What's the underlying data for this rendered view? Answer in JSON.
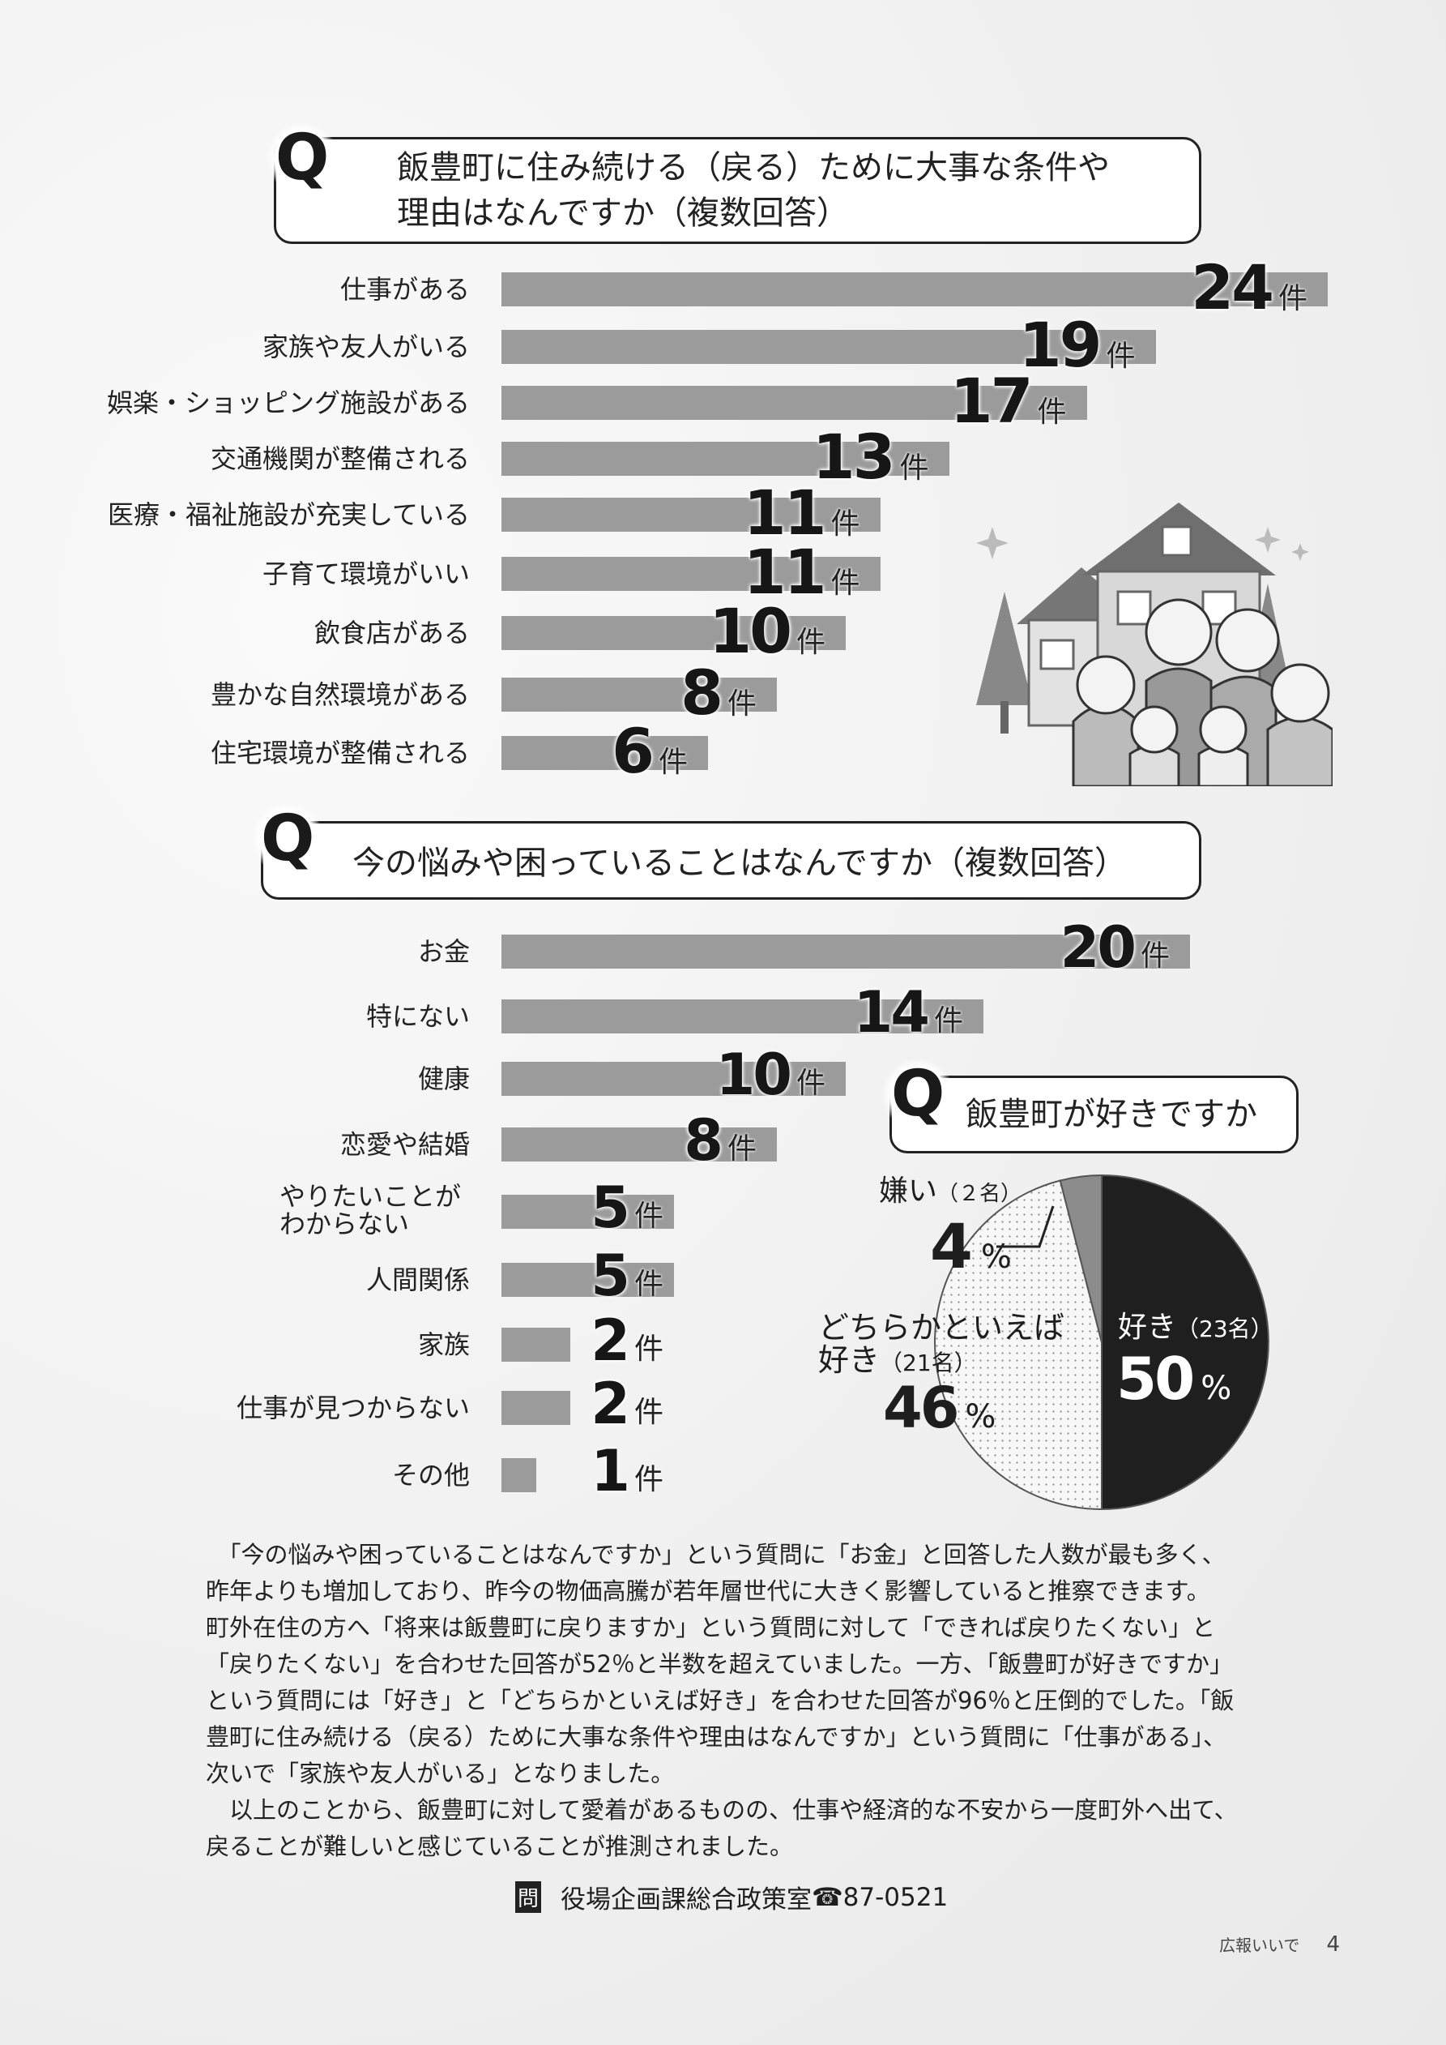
{
  "chart_data": [
    {
      "type": "bar",
      "orientation": "horizontal",
      "title": "飯豊町に住み続ける（戻る）ために大事な条件や理由はなんですか（複数回答）",
      "title_lines": [
        "飯豊町に住み続ける（戻る）ために大事な条件や",
        "理由はなんですか（複数回答）"
      ],
      "q_mark": "Q",
      "unit": "件",
      "categories": [
        "仕事がある",
        "家族や友人がいる",
        "娯楽・ショッピング施設がある",
        "交通機関が整備される",
        "医療・福祉施設が充実している",
        "子育て環境がいい",
        "飲食店がある",
        "豊かな自然環境がある",
        "住宅環境が整備される"
      ],
      "values": [
        24,
        19,
        17,
        13,
        11,
        11,
        10,
        8,
        6
      ]
    },
    {
      "type": "bar",
      "orientation": "horizontal",
      "title": "今の悩みや困っていることはなんですか（複数回答）",
      "q_mark": "Q",
      "unit": "件",
      "categories": [
        "お金",
        "特にない",
        "健康",
        "恋愛や結婚",
        "やりたいことがわからない",
        "人間関係",
        "家族",
        "仕事が見つからない",
        "その他"
      ],
      "category_lines": [
        [
          "お金"
        ],
        [
          "特にない"
        ],
        [
          "健康"
        ],
        [
          "恋愛や結婚"
        ],
        [
          "やりたいことが",
          "わからない"
        ],
        [
          "人間関係"
        ],
        [
          "家族"
        ],
        [
          "仕事が見つからない"
        ],
        [
          "その他"
        ]
      ],
      "values": [
        20,
        14,
        10,
        8,
        5,
        5,
        2,
        2,
        1
      ]
    },
    {
      "type": "pie",
      "title": "飯豊町が好きですか",
      "q_mark": "Q",
      "slices": [
        {
          "label": "好き",
          "count_text": "（23名）",
          "count": 23,
          "percent": 50,
          "percent_text": "50",
          "color": "#1f1f1f"
        },
        {
          "label": "どちらかといえば好き",
          "label_lines": [
            "どちらかといえば",
            "好き"
          ],
          "count_text": "（21名）",
          "count": 21,
          "percent": 46,
          "percent_text": "46",
          "color": "#f4f4f4"
        },
        {
          "label": "嫌い",
          "count_text": "（２名）",
          "count": 2,
          "percent": 4,
          "percent_text": "4",
          "color": "#8c8c8c"
        }
      ],
      "percent_sign": "%"
    }
  ],
  "paragraph": [
    "　「今の悩みや困っていることはなんですか」という質問に「お金」と回答した人数が最も多く、",
    "昨年よりも増加しており、昨今の物価高騰が若年層世代に大きく影響していると推察できます。",
    "町外在住の方へ「将来は飯豊町に戻りますか」という質問に対して「できれば戻りたくない」と",
    "「戻りたくない」を合わせた回答が52％と半数を超えていました。一方、「飯豊町が好きですか」",
    "という質問には「好き」と「どちらかといえば好き」を合わせた回答が96％と圧倒的でした。「飯",
    "豊町に住み続ける（戻る）ために大事な条件や理由はなんですか」という質問に「仕事がある」、",
    "次いで「家族や友人がいる」となりました。",
    "　以上のことから、飯豊町に対して愛着があるものの、仕事や経済的な不安から一度町外へ出て、",
    "戻ることが難しいと感じていることが推測されました。"
  ],
  "contact": {
    "badge": "問",
    "text": "役場企画課総合政策室",
    "phone_icon": "☎",
    "phone": "87-0521"
  },
  "footer": {
    "publication": "広報いいで",
    "page": "4"
  }
}
